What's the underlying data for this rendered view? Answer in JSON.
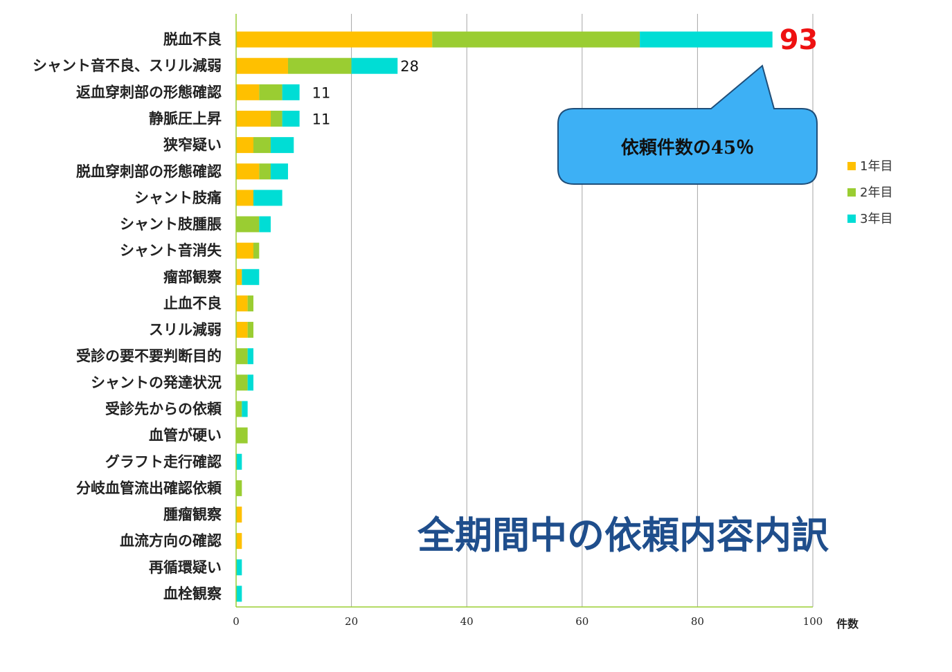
{
  "colors": {
    "year1": "#FFC000",
    "year2": "#9ACD32",
    "year3": "#00DDD5",
    "highlight": "#EE1111",
    "title": "#1F4E8C",
    "callout_fill": "#3DB0F5",
    "callout_stroke": "#1F4E79",
    "grid": "#A6A6A6",
    "axis": "#9ACD32"
  },
  "title": "全期間中の依頼内容内訳",
  "callout_text": "依頼件数の45％",
  "chart_data": {
    "type": "bar",
    "orientation": "horizontal",
    "stacked": true,
    "categories": [
      "脱血不良",
      "シャント音不良、スリル減弱",
      "返血穿刺部の形態確認",
      "静脈圧上昇",
      "狭窄疑い",
      "脱血穿刺部の形態確認",
      "シャント肢痛",
      "シャント肢腫脹",
      "シャント音消失",
      "瘤部観察",
      "止血不良",
      "スリル減弱",
      "受診の要不要判断目的",
      "シャントの発達状況",
      "受診先からの依頼",
      "血管が硬い",
      "グラフト走行確認",
      "分岐血管流出確認依頼",
      "腫瘤観察",
      "血流方向の確認",
      "再循環疑い",
      "血栓観察"
    ],
    "series": [
      {
        "name": "1年目",
        "values": [
          34,
          9,
          4,
          6,
          3,
          4,
          3,
          0,
          3,
          1,
          2,
          2,
          0,
          0,
          0,
          0,
          0,
          0,
          1,
          1,
          0,
          0
        ]
      },
      {
        "name": "2年目",
        "values": [
          36,
          11,
          4,
          2,
          3,
          2,
          0,
          4,
          1,
          0,
          1,
          1,
          2,
          2,
          1,
          2,
          0,
          1,
          0,
          0,
          0,
          0
        ]
      },
      {
        "name": "3年目",
        "values": [
          23,
          8,
          3,
          3,
          4,
          3,
          5,
          2,
          0,
          3,
          0,
          0,
          1,
          1,
          1,
          0,
          1,
          0,
          0,
          0,
          1,
          1
        ]
      }
    ],
    "data_labels": [
      {
        "category_index": 0,
        "text": "93",
        "highlight": true
      },
      {
        "category_index": 1,
        "text": "28",
        "highlight": false
      },
      {
        "category_index": 2,
        "text": "11",
        "highlight": false
      },
      {
        "category_index": 3,
        "text": "11",
        "highlight": false
      }
    ],
    "xlim": [
      0,
      100
    ],
    "xticks": [
      0,
      20,
      40,
      60,
      80,
      100
    ],
    "xlabel": "件数",
    "grid": true,
    "legend_position": "right"
  }
}
